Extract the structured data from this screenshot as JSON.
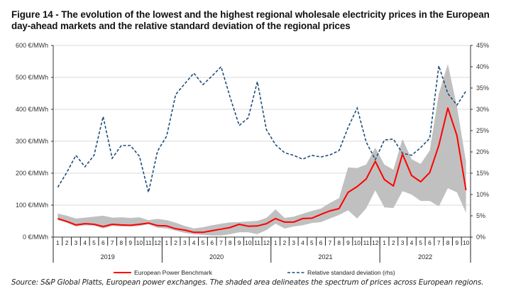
{
  "figure": {
    "title": "Figure 14 - The evolution of the lowest and the highest regional wholesale electricity prices in the European day-ahead markets and the relative standard deviation of the regional prices",
    "source": "Source: S&P Global Platts, European power exchanges. The shaded area delineates the spectrum of prices across European regions."
  },
  "colors": {
    "benchmark": "#ff0000",
    "rsd": "#1f4e79",
    "band": "#c0c0c0",
    "grid": "#d9d9d9",
    "axis": "#333333"
  },
  "chart_data": {
    "type": "line",
    "title": "Figure 14 - The evolution of the lowest and the highest regional wholesale electricity prices in the European day-ahead markets and the relative standard deviation of the regional prices",
    "xlabel": "",
    "ylabel": "€/MWh",
    "y2label": "%",
    "ylim": [
      0,
      600
    ],
    "y2lim": [
      0,
      45
    ],
    "yticks": [
      "0 €/MWh",
      "100 €/MWh",
      "200 €/MWh",
      "300 €/MWh",
      "400 €/MWh",
      "500 €/MWh",
      "600 €/MWh"
    ],
    "y2ticks": [
      "0%",
      "5%",
      "10%",
      "15%",
      "20%",
      "25%",
      "30%",
      "35%",
      "40%",
      "45%"
    ],
    "grid": true,
    "legend_position": "bottom",
    "months": [
      "1",
      "2",
      "3",
      "4",
      "5",
      "6",
      "7",
      "8",
      "9",
      "10",
      "11",
      "12",
      "1",
      "2",
      "3",
      "4",
      "5",
      "6",
      "7",
      "8",
      "9",
      "10",
      "11",
      "12",
      "1",
      "2",
      "3",
      "4",
      "5",
      "6",
      "7",
      "8",
      "9",
      "10",
      "11",
      "12",
      "1",
      "2",
      "3",
      "4",
      "5",
      "6",
      "7",
      "8",
      "9",
      "10"
    ],
    "years": [
      {
        "label": "2019",
        "months": 12
      },
      {
        "label": "2020",
        "months": 12
      },
      {
        "label": "2021",
        "months": 12
      },
      {
        "label": "2022",
        "months": 10
      }
    ],
    "series": [
      {
        "name": "European Power Benchmark",
        "axis": "left",
        "style": "solid",
        "values": [
          58,
          49,
          38,
          42,
          40,
          33,
          40,
          38,
          37,
          40,
          44,
          36,
          35,
          26,
          22,
          15,
          15,
          20,
          25,
          30,
          40,
          34,
          35,
          42,
          58,
          47,
          47,
          58,
          59,
          71,
          82,
          89,
          140,
          158,
          182,
          237,
          180,
          160,
          260,
          193,
          173,
          202,
          287,
          404,
          318,
          147
        ]
      },
      {
        "name": "Relative standard deviation (rhs)",
        "axis": "right",
        "style": "dashed",
        "values": [
          11.7,
          15.2,
          19.2,
          16.5,
          19.2,
          28.3,
          18.5,
          21.5,
          21.5,
          19.0,
          10.5,
          20.2,
          23.7,
          33.5,
          36.0,
          38.5,
          35.8,
          37.8,
          40.0,
          32.8,
          26.2,
          28.0,
          36.5,
          25.2,
          21.7,
          19.8,
          19.2,
          18.3,
          19.2,
          18.8,
          19.3,
          20.3,
          25.7,
          30.3,
          22.3,
          18.2,
          22.8,
          23.0,
          19.7,
          19.2,
          21.0,
          23.2,
          40.2,
          33.7,
          31.0,
          34.3
        ]
      },
      {
        "name": "Highest regional price",
        "axis": "left",
        "style": "band-upper",
        "values": [
          74,
          67,
          58,
          61,
          64,
          67,
          61,
          62,
          60,
          62,
          53,
          57,
          53,
          45,
          35,
          27,
          31,
          37,
          42,
          46,
          47,
          49,
          51,
          60,
          87,
          60,
          64,
          73,
          82,
          89,
          107,
          122,
          218,
          216,
          227,
          280,
          227,
          211,
          307,
          244,
          229,
          271,
          449,
          542,
          409,
          236
        ]
      },
      {
        "name": "Lowest regional price",
        "axis": "left",
        "style": "band-lower",
        "values": [
          53,
          45,
          33,
          37,
          36,
          27,
          35,
          33,
          33,
          35,
          40,
          29,
          27,
          20,
          13,
          9,
          7,
          5,
          5,
          9,
          15,
          15,
          9,
          22,
          42,
          27,
          33,
          37,
          44,
          47,
          58,
          69,
          84,
          58,
          90,
          146,
          93,
          91,
          144,
          133,
          113,
          113,
          96,
          153,
          140,
          76
        ]
      }
    ],
    "legend": [
      {
        "label": "European Power Benchmark",
        "style": "solid"
      },
      {
        "label": "Relative standard deviation (rhs)",
        "style": "dashed"
      }
    ]
  }
}
